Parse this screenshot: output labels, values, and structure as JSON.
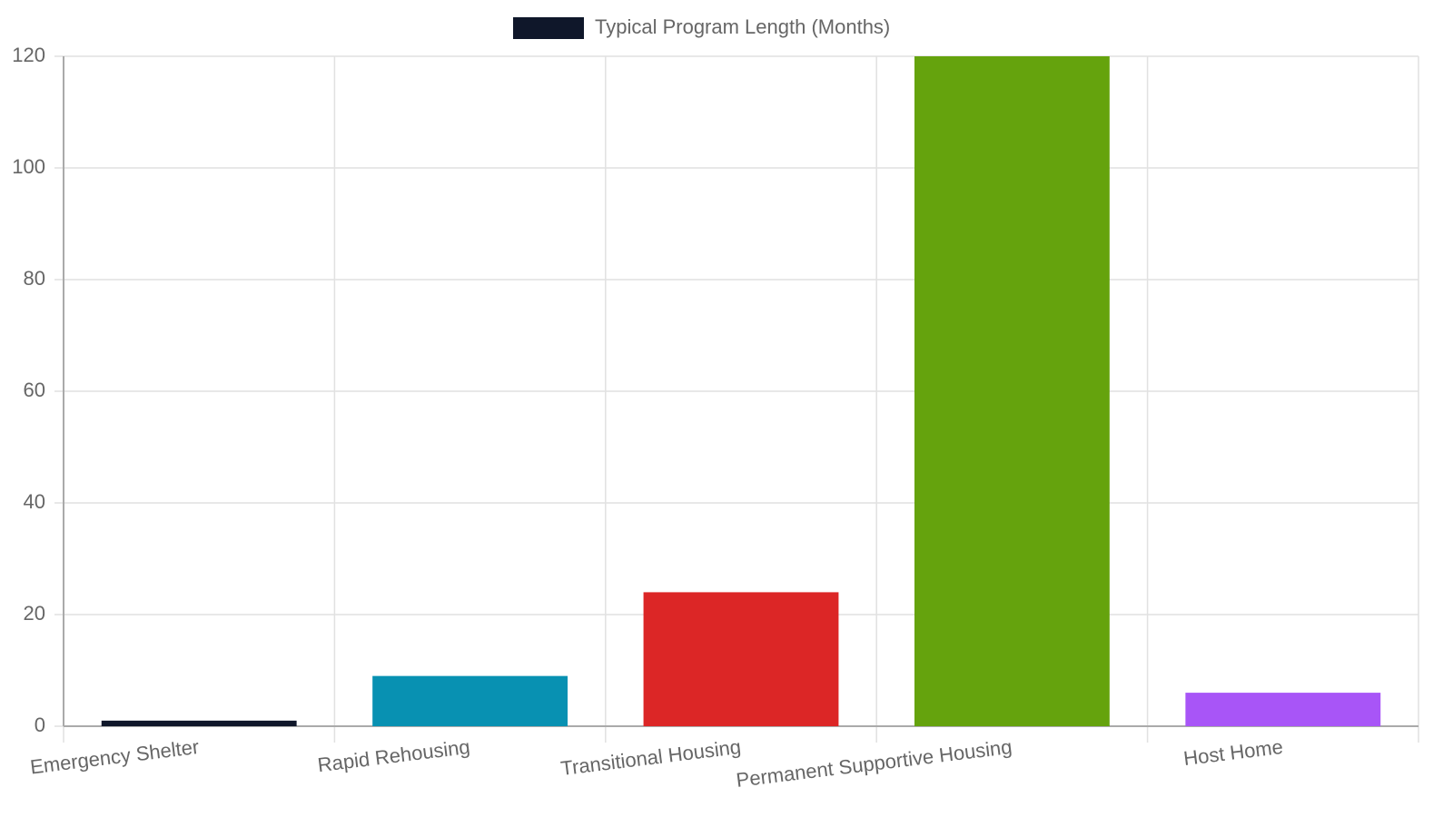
{
  "chart_data": {
    "type": "bar",
    "categories": [
      "Emergency Shelter",
      "Rapid Rehousing",
      "Transitional Housing",
      "Permanent Supportive Housing",
      "Host Home"
    ],
    "series": [
      {
        "name": "Typical Program Length (Months)",
        "colors": [
          "#0f172a",
          "#0891b2",
          "#dc2626",
          "#65a30d",
          "#a855f7"
        ],
        "values": [
          1,
          9,
          24,
          120,
          6
        ]
      }
    ],
    "ylim": [
      0,
      120
    ],
    "yticks": [
      0,
      20,
      40,
      60,
      80,
      100,
      120
    ],
    "grid": true,
    "legend": "top"
  }
}
